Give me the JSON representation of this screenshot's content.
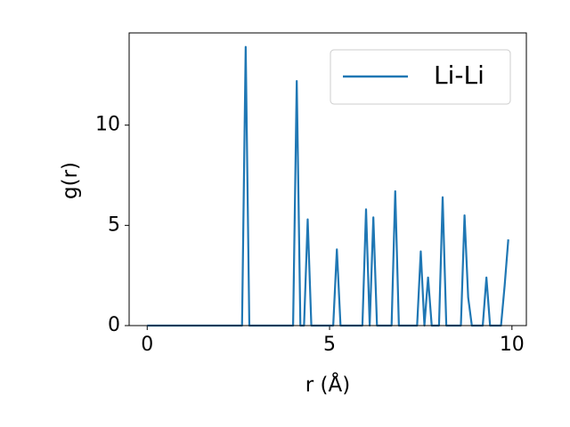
{
  "chart_data": {
    "type": "line",
    "xlabel": "r (Å)",
    "ylabel": "g(r)",
    "x": [
      0,
      0.1,
      0.2,
      0.3,
      0.4,
      0.5,
      0.6,
      0.7,
      0.8,
      0.9,
      1,
      1.1,
      1.2,
      1.3,
      1.4,
      1.5,
      1.6,
      1.7,
      1.8,
      1.9,
      2,
      2.1,
      2.2,
      2.3,
      2.4,
      2.5,
      2.6,
      2.7,
      2.8,
      2.9,
      3,
      3.1,
      3.2,
      3.3,
      3.4,
      3.5,
      3.6,
      3.7,
      3.8,
      3.9,
      4,
      4.1,
      4.2,
      4.3,
      4.4,
      4.5,
      4.6,
      4.7,
      4.8,
      4.9,
      5,
      5.1,
      5.2,
      5.3,
      5.4,
      5.5,
      5.6,
      5.7,
      5.8,
      5.9,
      6,
      6.1,
      6.2,
      6.3,
      6.4,
      6.5,
      6.6,
      6.7,
      6.8,
      6.9,
      7,
      7.1,
      7.2,
      7.3,
      7.4,
      7.5,
      7.6,
      7.7,
      7.8,
      7.9,
      8,
      8.1,
      8.2,
      8.3,
      8.4,
      8.5,
      8.6,
      8.7,
      8.8,
      8.9,
      9,
      9.1,
      9.2,
      9.3,
      9.4,
      9.5,
      9.6,
      9.7,
      9.8,
      9.9
    ],
    "series": [
      {
        "name": "Li-Li",
        "color": "#1f77b4",
        "values": [
          0,
          0,
          0,
          0,
          0,
          0,
          0,
          0,
          0,
          0,
          0,
          0,
          0,
          0,
          0,
          0,
          0,
          0,
          0,
          0,
          0,
          0,
          0,
          0,
          0,
          0,
          0,
          13.9,
          0,
          0,
          0,
          0,
          0,
          0,
          0,
          0,
          0,
          0,
          0,
          0,
          0,
          12.2,
          0,
          0,
          5.3,
          0,
          0,
          0,
          0,
          0,
          0,
          0,
          3.8,
          0,
          0,
          0,
          0,
          0,
          0,
          0,
          5.8,
          0,
          5.4,
          0,
          0,
          0,
          0,
          0,
          6.7,
          0,
          0,
          0,
          0,
          0,
          0,
          3.7,
          0,
          2.4,
          0,
          0,
          0,
          6.4,
          0,
          0,
          0,
          0,
          0,
          5.5,
          1.4,
          0,
          0,
          0,
          0,
          2.4,
          0,
          0,
          0,
          0,
          2.0,
          4.3
        ]
      }
    ],
    "xlim": [
      -0.495,
      10.395
    ],
    "ylim": [
      0,
      14.6
    ],
    "xticks": [
      0,
      5,
      10
    ],
    "yticks": [
      0,
      5,
      10
    ],
    "legend": "upper right"
  }
}
